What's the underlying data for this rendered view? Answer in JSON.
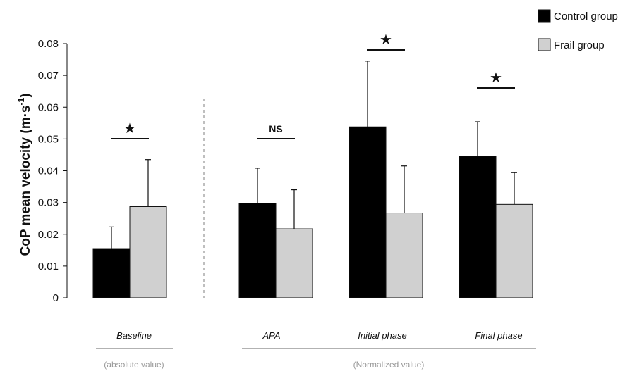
{
  "chart_data": {
    "type": "bar",
    "categories": [
      "Baseline",
      "APA",
      "Initial phase",
      "Final phase"
    ],
    "series": [
      {
        "name": "Control group",
        "color": "#000000",
        "values": [
          0.0155,
          0.0298,
          0.0538,
          0.0446
        ],
        "errors": [
          0.0068,
          0.011,
          0.0207,
          0.0108
        ]
      },
      {
        "name": "Frail group",
        "color": "#d0d0d0",
        "values": [
          0.0287,
          0.0217,
          0.0267,
          0.0294
        ],
        "errors": [
          0.0148,
          0.0123,
          0.0148,
          0.01
        ]
      }
    ],
    "significance": [
      "★",
      "NS",
      "★",
      "★"
    ],
    "ylabel_main": "CoP mean velocity (m·s",
    "ylabel_sup": "-1",
    "ylabel_close": ")",
    "ylim": [
      0,
      0.08
    ],
    "yticks": [
      "0",
      "0.01",
      "0.02",
      "0.03",
      "0.04",
      "0.05",
      "0.06",
      "0.07",
      "0.08"
    ],
    "group_labels": [
      "(absolute value)",
      "(Normalized value)"
    ],
    "legend_position": "top-right",
    "grid": false
  }
}
